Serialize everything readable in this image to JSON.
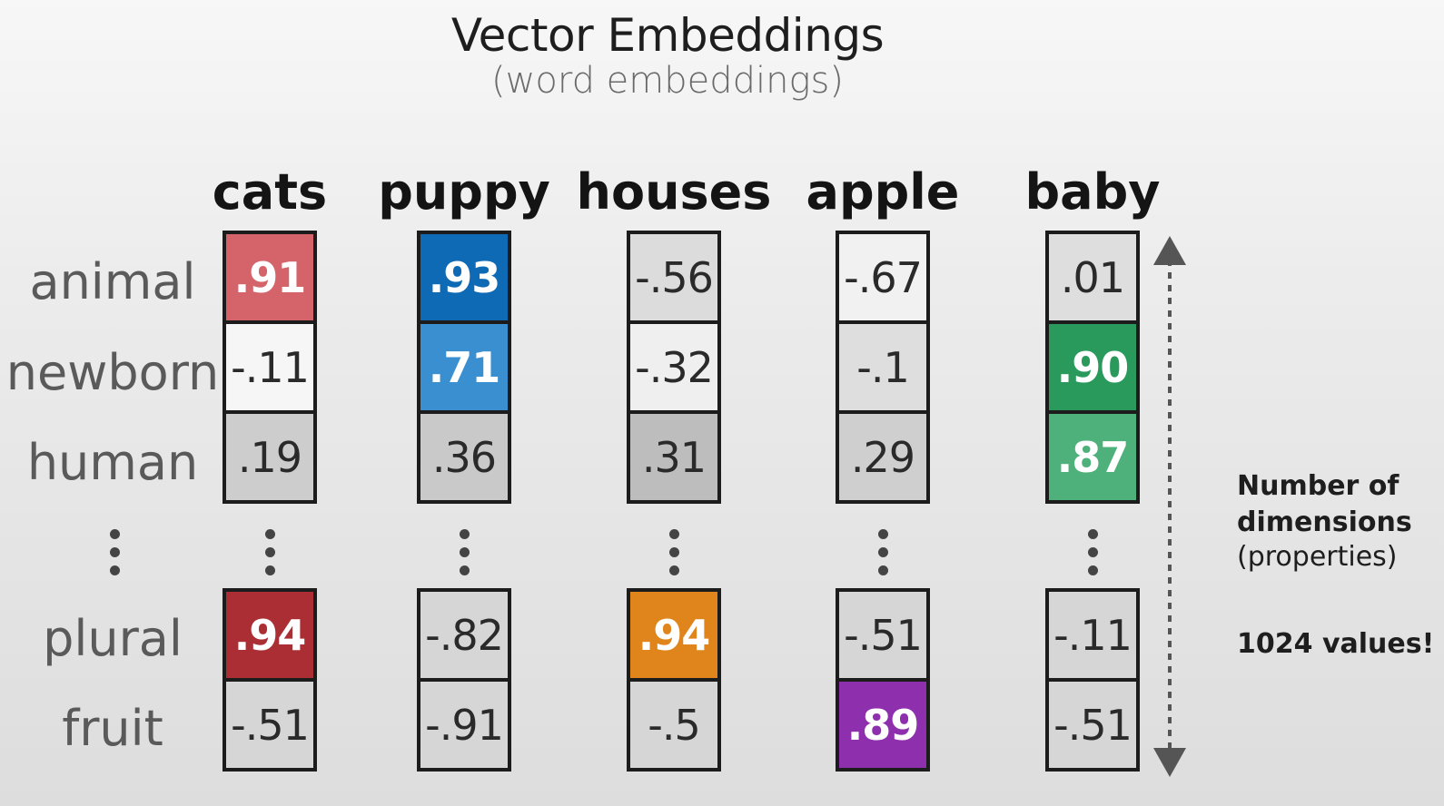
{
  "title": "Vector Embeddings",
  "subtitle": "(word embeddings)",
  "columns": [
    {
      "word": "cats",
      "top": [
        {
          "v": ".91",
          "bg": "#d4646a",
          "hl": true
        },
        {
          "v": "-.11",
          "bg": "#f6f6f6"
        },
        {
          "v": ".19",
          "bg": "#cdcdcd"
        }
      ],
      "bottom": [
        {
          "v": ".94",
          "bg": "#ab2e34",
          "hl": true
        },
        {
          "v": "-.51",
          "bg": "#d6d6d6"
        }
      ]
    },
    {
      "word": "puppy",
      "top": [
        {
          "v": ".93",
          "bg": "#0f6ab5",
          "hl": true
        },
        {
          "v": ".71",
          "bg": "#3a8fd0",
          "hl": true
        },
        {
          "v": ".36",
          "bg": "#c9c9c9"
        }
      ],
      "bottom": [
        {
          "v": "-.82",
          "bg": "#d6d6d6"
        },
        {
          "v": "-.91",
          "bg": "#d6d6d6"
        }
      ]
    },
    {
      "word": "houses",
      "top": [
        {
          "v": "-.56",
          "bg": "#dcdcdc"
        },
        {
          "v": "-.32",
          "bg": "#efefef"
        },
        {
          "v": ".31",
          "bg": "#bdbdbd"
        }
      ],
      "bottom": [
        {
          "v": ".94",
          "bg": "#e0841c",
          "hl": true
        },
        {
          "v": "-.5",
          "bg": "#d6d6d6"
        }
      ]
    },
    {
      "word": "apple",
      "top": [
        {
          "v": "-.67",
          "bg": "#f1f1f1"
        },
        {
          "v": "-.1",
          "bg": "#dedede"
        },
        {
          "v": ".29",
          "bg": "#cfcfcf"
        }
      ],
      "bottom": [
        {
          "v": "-.51",
          "bg": "#d6d6d6"
        },
        {
          "v": ".89",
          "bg": "#8e2fae",
          "hl": true
        }
      ]
    },
    {
      "word": "baby",
      "top": [
        {
          "v": ".01",
          "bg": "#dedede"
        },
        {
          "v": ".90",
          "bg": "#2a9a5c",
          "hl": true
        },
        {
          "v": ".87",
          "bg": "#4eb07a",
          "hl": true
        }
      ],
      "bottom": [
        {
          "v": "-.11",
          "bg": "#d6d6d6"
        },
        {
          "v": "-.51",
          "bg": "#d6d6d6"
        }
      ]
    }
  ],
  "rows_top": [
    "animal",
    "newborn",
    "human"
  ],
  "rows_bottom": [
    "plural",
    "fruit"
  ],
  "note": {
    "heading": "Number of dimensions",
    "paren": "(properties)",
    "count": "1024 values!"
  }
}
